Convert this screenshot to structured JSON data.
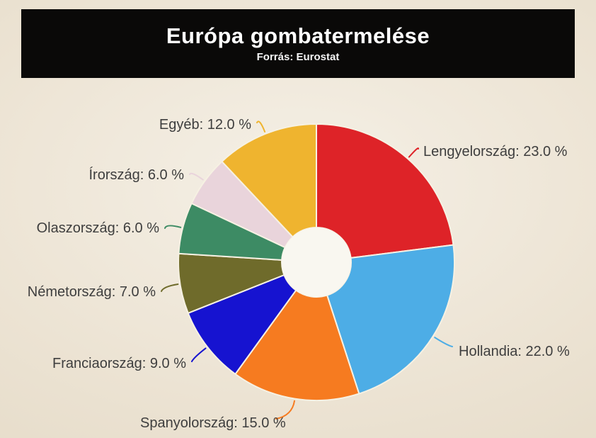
{
  "header": {
    "title": "Európa gombatermelése",
    "subtitle": "Forrás: Eurostat",
    "bg_color": "#0a0908",
    "text_color": "#ffffff"
  },
  "chart_data": {
    "type": "pie",
    "subtype": "donut",
    "title": "Európa gombatermelése",
    "subtitle": "Forrás: Eurostat",
    "unit": "%",
    "start_angle_deg": 0,
    "direction": "clockwise",
    "label_format": "{label}: {value} %",
    "slices": [
      {
        "label": "Lengyelország",
        "value": 23.0,
        "color": "#de2328"
      },
      {
        "label": "Hollandia",
        "value": 22.0,
        "color": "#4dade6"
      },
      {
        "label": "Spanyolország",
        "value": 15.0,
        "color": "#f67b20"
      },
      {
        "label": "Franciaország",
        "value": 9.0,
        "color": "#1613d0"
      },
      {
        "label": "Németország",
        "value": 7.0,
        "color": "#6f6b2b"
      },
      {
        "label": "Olaszország",
        "value": 6.0,
        "color": "#3d8b64"
      },
      {
        "label": "Írország",
        "value": 6.0,
        "color": "#e9d4db"
      },
      {
        "label": "Egyéb",
        "value": 12.0,
        "color": "#efb42f"
      }
    ],
    "style": {
      "hole_color": "#f9f7f0",
      "separator_color": "#f6f1e3",
      "label_text_color": "#3e3e3e",
      "background_color": "#ece3d3"
    }
  }
}
